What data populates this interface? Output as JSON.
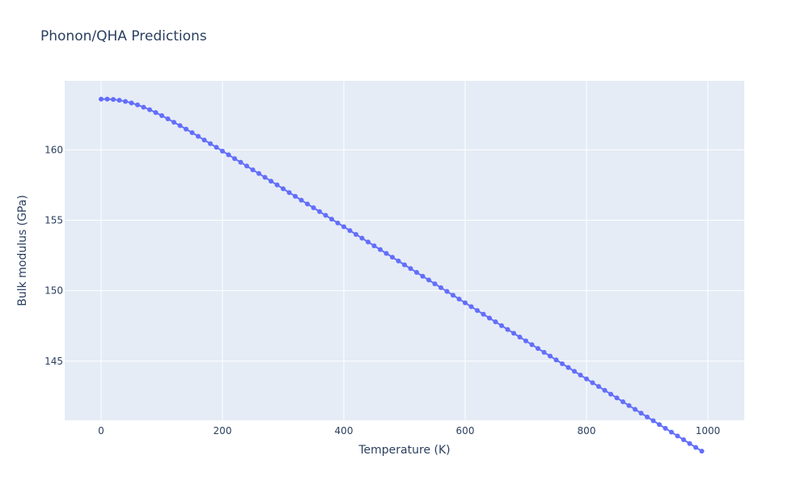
{
  "chart_data": {
    "type": "scatter",
    "mode": "lines+markers",
    "title": "Phonon/QHA Predictions",
    "xlabel": "Temperature (K)",
    "ylabel": "Bulk modulus (GPa)",
    "xlim": [
      -60,
      1060
    ],
    "ylim": [
      140.8,
      164.9
    ],
    "xticks": [
      0,
      200,
      400,
      600,
      800,
      1000
    ],
    "yticks": [
      145,
      150,
      155,
      160
    ],
    "grid": true,
    "series_color": "#636efa",
    "plot_bg_color": "#e5ecf6",
    "series": [
      {
        "x": [
          0,
          10,
          20,
          30,
          40,
          50,
          60,
          70,
          80,
          90,
          100,
          110,
          120,
          130,
          140,
          150,
          160,
          170,
          180,
          190,
          200,
          210,
          220,
          230,
          240,
          250,
          260,
          270,
          280,
          290,
          300,
          310,
          320,
          330,
          340,
          350,
          360,
          370,
          380,
          390,
          400,
          410,
          420,
          430,
          440,
          450,
          460,
          470,
          480,
          490,
          500,
          510,
          520,
          530,
          540,
          550,
          560,
          570,
          580,
          590,
          600,
          610,
          620,
          630,
          640,
          650,
          660,
          670,
          680,
          690,
          700,
          710,
          720,
          730,
          740,
          750,
          760,
          770,
          780,
          790,
          800,
          810,
          820,
          830,
          840,
          850,
          860,
          870,
          880,
          890,
          900,
          910,
          920,
          930,
          940,
          950,
          960,
          970,
          980,
          990
        ],
        "y": [
          163.6,
          163.6,
          163.58,
          163.52,
          163.44,
          163.33,
          163.19,
          163.03,
          162.85,
          162.65,
          162.43,
          162.2,
          161.96,
          161.72,
          161.47,
          161.22,
          160.96,
          160.7,
          160.44,
          160.18,
          159.91,
          159.65,
          159.38,
          159.12,
          158.85,
          158.58,
          158.32,
          158.05,
          157.78,
          157.51,
          157.24,
          156.97,
          156.7,
          156.43,
          156.16,
          155.89,
          155.62,
          155.35,
          155.08,
          154.81,
          154.54,
          154.27,
          154.0,
          153.73,
          153.46,
          153.19,
          152.92,
          152.65,
          152.38,
          152.11,
          151.84,
          151.57,
          151.3,
          151.03,
          150.76,
          150.49,
          150.22,
          149.95,
          149.68,
          149.41,
          149.14,
          148.87,
          148.6,
          148.33,
          148.06,
          147.79,
          147.52,
          147.25,
          146.98,
          146.71,
          146.44,
          146.17,
          145.9,
          145.63,
          145.36,
          145.09,
          144.82,
          144.55,
          144.28,
          144.01,
          143.74,
          143.47,
          143.2,
          142.93,
          142.66,
          142.39,
          142.12,
          141.85,
          141.58,
          141.31,
          141.04,
          140.77,
          140.5,
          140.23,
          139.96,
          139.69,
          139.42,
          139.15,
          138.88,
          138.61
        ]
      }
    ]
  }
}
